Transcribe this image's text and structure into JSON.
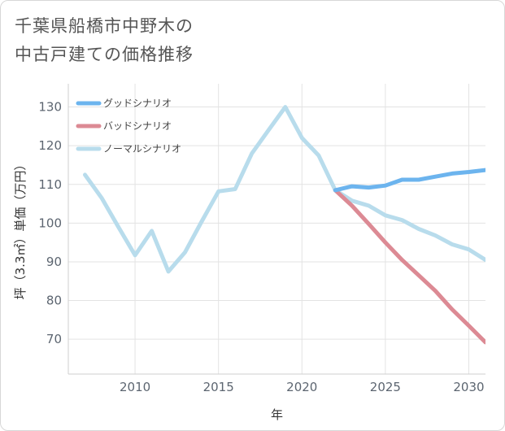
{
  "page": {
    "title_line1": "千葉県船橋市中野木の",
    "title_line2": "中古戸建ての価格推移"
  },
  "chart_data": {
    "type": "line",
    "xlabel": "年",
    "ylabel": "坪（3.3㎡）単価（万円）",
    "xlim": [
      2006,
      2031
    ],
    "ylim": [
      61,
      136
    ],
    "xticks": [
      2010,
      2015,
      2020,
      2025,
      2030
    ],
    "yticks": [
      70,
      80,
      90,
      100,
      110,
      120,
      130
    ],
    "grid": true,
    "legend_position": "top-left",
    "series": [
      {
        "name": "グッドシナリオ",
        "color": "#6cb4ee",
        "x": [
          2022,
          2023,
          2024,
          2025,
          2026,
          2027,
          2028,
          2029,
          2030,
          2031
        ],
        "values": [
          108.5,
          109.5,
          109.2,
          109.7,
          111.2,
          111.2,
          112.0,
          112.8,
          113.2,
          113.7
        ]
      },
      {
        "name": "バッドシナリオ",
        "color": "#dc8a94",
        "x": [
          2022,
          2023,
          2024,
          2025,
          2026,
          2027,
          2028,
          2029,
          2030,
          2031
        ],
        "values": [
          108.5,
          104.5,
          99.8,
          95.0,
          90.5,
          86.5,
          82.5,
          77.7,
          73.5,
          69.2
        ]
      },
      {
        "name": "ノーマルシナリオ",
        "color": "#b8dcec",
        "x": [
          2007,
          2008,
          2009,
          2010,
          2011,
          2012,
          2013,
          2014,
          2015,
          2016,
          2017,
          2018,
          2019,
          2020,
          2021,
          2022,
          2023,
          2024,
          2025,
          2026,
          2027,
          2028,
          2029,
          2030,
          2031
        ],
        "values": [
          112.5,
          106.5,
          99.0,
          91.7,
          98.0,
          87.5,
          92.5,
          100.5,
          108.2,
          108.8,
          118.0,
          124.0,
          130.0,
          122.0,
          117.5,
          108.5,
          105.8,
          104.5,
          102.0,
          100.8,
          98.5,
          96.8,
          94.5,
          93.2,
          90.5
        ]
      }
    ]
  }
}
